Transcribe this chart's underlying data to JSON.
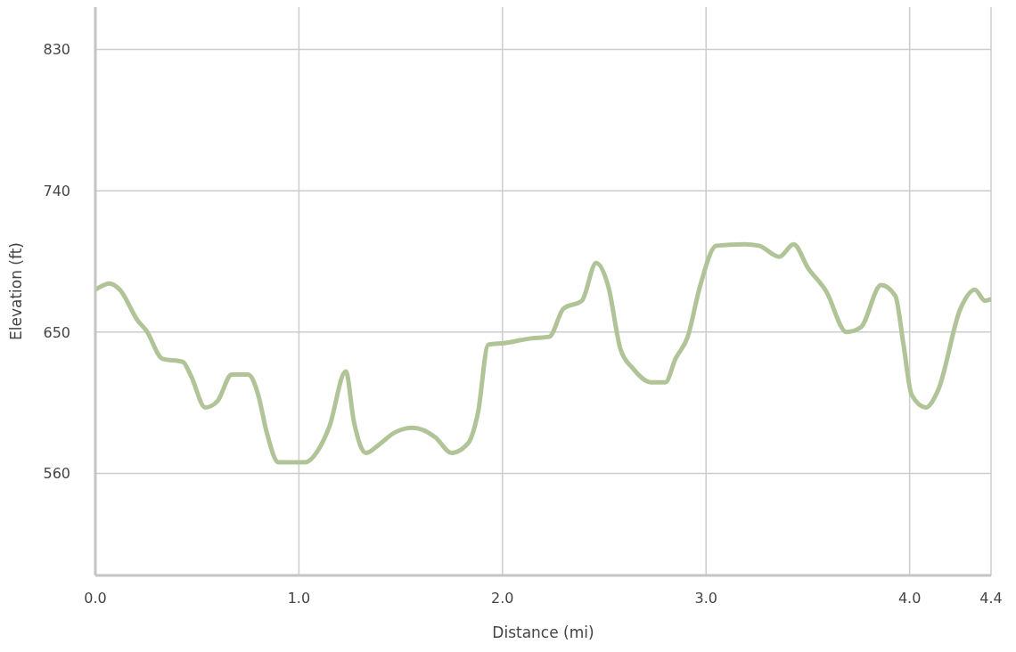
{
  "chart_data": {
    "type": "line",
    "xlabel": "Distance (mi)",
    "ylabel": "Elevation (ft)",
    "x": [
      0,
      0.07,
      0.12,
      0.21,
      0.25,
      0.33,
      0.43,
      0.47,
      0.54,
      0.6,
      0.67,
      0.75,
      0.8,
      0.84,
      0.9,
      0.97,
      1.03,
      1.1,
      1.15,
      1.23,
      1.27,
      1.33,
      1.4,
      1.47,
      1.56,
      1.67,
      1.75,
      1.83,
      1.88,
      1.93,
      2.01,
      2.14,
      2.23,
      2.3,
      2.39,
      2.46,
      2.52,
      2.58,
      2.64,
      2.73,
      2.8,
      2.85,
      2.91,
      2.97,
      3.05,
      3.19,
      3.26,
      3.36,
      3.43,
      3.5,
      3.59,
      3.69,
      3.76,
      3.86,
      3.93,
      3.97,
      4.01,
      4.08,
      4.14,
      4.25,
      4.32,
      4.37,
      4.4
    ],
    "series": [
      {
        "color": "#b1c498",
        "values": [
          677,
          681,
          677,
          657,
          651,
          633,
          631,
          622,
          602,
          606,
          623,
          623,
          610,
          587,
          567,
          567,
          567,
          576,
          590,
          625,
          593,
          573,
          579,
          586,
          589,
          583,
          573,
          579,
          599,
          642,
          643,
          646,
          647,
          665,
          670,
          694,
          679,
          639,
          627,
          618,
          618,
          633,
          647,
          679,
          705,
          706,
          705,
          698,
          706,
          691,
          676,
          650,
          653,
          680,
          673,
          642,
          610,
          602,
          613,
          665,
          677,
          670,
          671
        ]
      }
    ],
    "xlim": [
      0,
      4.4
    ],
    "xticks": [
      {
        "value": 0,
        "label": "0.0"
      },
      {
        "value": 1,
        "label": "1.0"
      },
      {
        "value": 2,
        "label": "2.0"
      },
      {
        "value": 3,
        "label": "3.0"
      },
      {
        "value": 4,
        "label": "4.0"
      },
      4.4
    ],
    "ylim": [
      495,
      857
    ],
    "yticks": [
      560,
      650,
      740,
      830
    ],
    "grid": true,
    "marker": "none",
    "line_style": "solid"
  }
}
